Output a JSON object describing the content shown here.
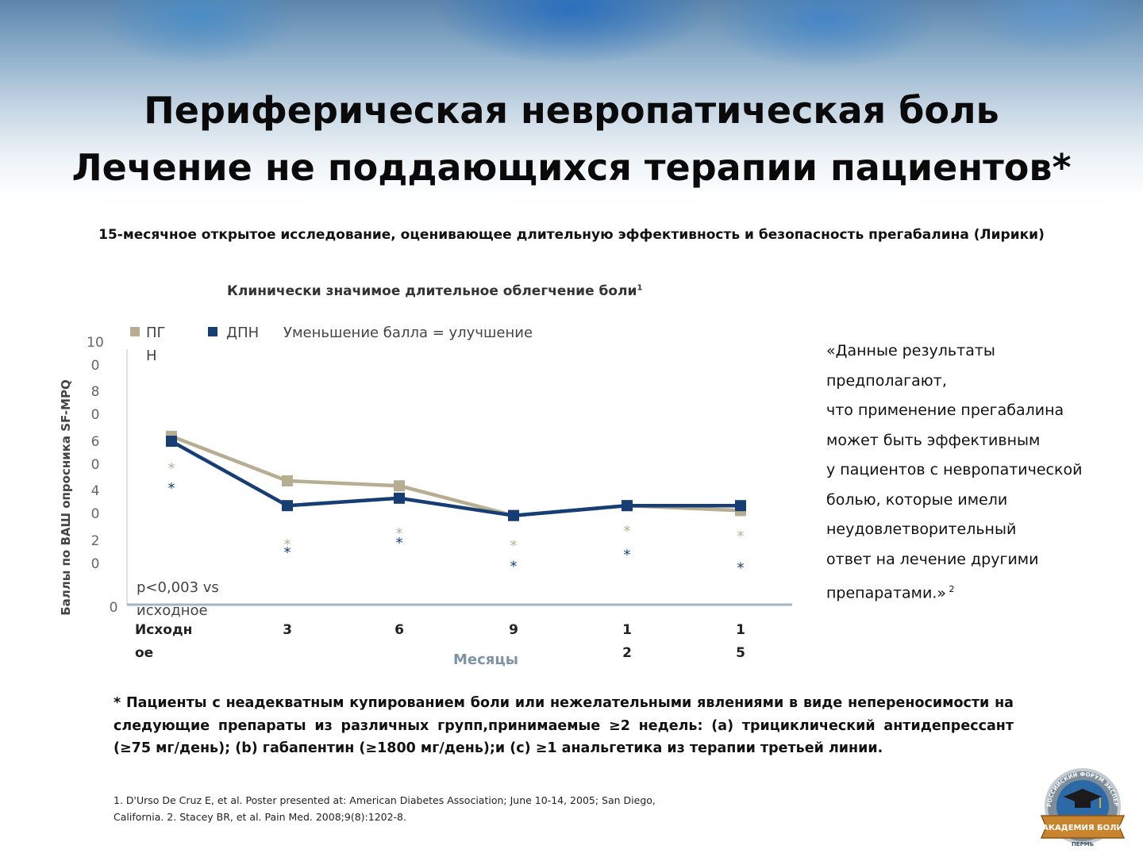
{
  "slide": {
    "title_line1": "Периферическая невропатическая боль",
    "title_line2": "Лечение не поддающихся терапии пациентов*",
    "subtitle": "15-месячное открытое исследование, оценивающее длительную эффективность и безопасность прегабалина (Лирики)",
    "quote_lines": [
      "«Данные результаты",
      "предполагают,",
      "что применение прегабалина",
      "может быть эффективным",
      "у пациентов с невропатической",
      "болью, которые имели",
      "неудовлетворительный",
      "ответ на лечение другими",
      "препаратами.»"
    ],
    "quote_ref": "2",
    "footnote": "* Пациенты с неадекватным купированием боли или нежелательными явлениями в виде непереносимости на следующие препараты из различных групп,принимаемые ≥2 недель: (a) трициклический антидепрессант (≥75 мг/день); (b) габапентин (≥1800 мг/день);и (c) ≥1 анальгетика из терапии третьей линии.",
    "references_line1": "1. D'Urso De Cruz E, et al. Poster presented at: American Diabetes Association; June 10-14, 2005; San Diego,",
    "references_line2": "California. 2. Stacey BR, et al. Pain Med. 2008;9(8):1202-8.",
    "logo": {
      "top_text": "ВСЕРОССИЙСКИЙ ФОРУМ ЭКСПЕРТОВ",
      "main_text": "АКАДЕМИЯ БОЛИ",
      "bottom_text": "ПЕРМЬ",
      "icon": "graduation-cap-icon"
    }
  },
  "chart_data": {
    "type": "line",
    "title": "Клинически значимое длительное облегчение боли",
    "title_ref": "1",
    "legend_note": "Уменьшение балла = улучшение",
    "ylabel": "Баллы по ВАШ опросника SF-MPQ",
    "xlabel": "Месяцы",
    "ylim": [
      0,
      100
    ],
    "y_ticks": [
      {
        "value": 0,
        "label": "0"
      },
      {
        "value": 20,
        "label": "2\n0"
      },
      {
        "value": 40,
        "label": "4\n0"
      },
      {
        "value": 60,
        "label": "6\n0"
      },
      {
        "value": 80,
        "label": "8\n0"
      },
      {
        "value": 100,
        "label": "10\n0"
      }
    ],
    "categories": [
      "Исходное",
      "3",
      "6",
      "9",
      "12",
      "15"
    ],
    "x_tick_labels": [
      "Исходн\nое",
      "3",
      "6",
      "9",
      "1\n2",
      "1\n5"
    ],
    "annotation": "p<0,003 vs исходное",
    "significance_marker": "*",
    "series": [
      {
        "name": "ПГН",
        "legend_label": "ПГ\nН",
        "color": "#b7ae92",
        "values": [
          68,
          50,
          48,
          36,
          40,
          38
        ]
      },
      {
        "name": "ДПН",
        "legend_label": "ДПН",
        "color": "#173d75",
        "values": [
          66,
          40,
          43,
          36,
          40,
          40
        ]
      }
    ]
  }
}
